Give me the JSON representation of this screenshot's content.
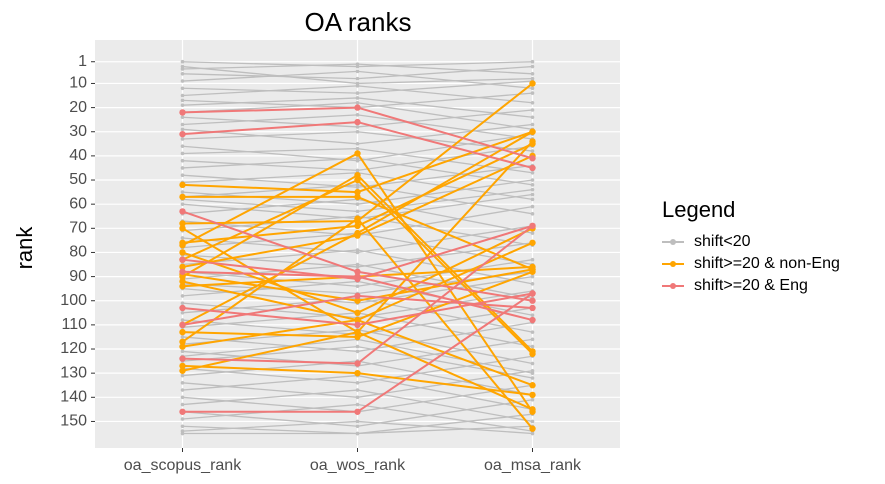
{
  "chart_data": {
    "type": "parallel-line",
    "title": "OA ranks",
    "y_label": "rank",
    "legend_title": "Legend",
    "categories": [
      "oa_scopus_rank",
      "oa_wos_rank",
      "oa_msa_rank"
    ],
    "ylim": [
      -8,
      161
    ],
    "y_reversed": true,
    "grid": true,
    "yticks": [
      1,
      10,
      20,
      30,
      40,
      50,
      60,
      70,
      80,
      90,
      100,
      110,
      120,
      130,
      140,
      150
    ],
    "series": [
      {
        "name": "shift<20",
        "color": "#bebebe",
        "lines": [
          [
            1,
            3,
            1
          ],
          [
            4,
            2,
            6
          ],
          [
            6,
            8,
            3
          ],
          [
            9,
            5,
            12
          ],
          [
            12,
            14,
            9
          ],
          [
            15,
            11,
            18
          ],
          [
            17,
            20,
            14
          ],
          [
            19,
            16,
            24
          ],
          [
            24,
            28,
            21
          ],
          [
            27,
            23,
            33
          ],
          [
            29,
            35,
            27
          ],
          [
            33,
            30,
            38
          ],
          [
            36,
            42,
            31
          ],
          [
            39,
            37,
            47
          ],
          [
            42,
            46,
            36
          ],
          [
            45,
            41,
            52
          ],
          [
            48,
            53,
            44
          ],
          [
            51,
            47,
            58
          ],
          [
            55,
            60,
            50
          ],
          [
            57,
            52,
            64
          ],
          [
            60,
            66,
            56
          ],
          [
            64,
            58,
            72
          ],
          [
            67,
            73,
            61
          ],
          [
            71,
            65,
            77
          ],
          [
            74,
            80,
            69
          ],
          [
            78,
            72,
            85
          ],
          [
            81,
            86,
            76
          ],
          [
            85,
            79,
            93
          ],
          [
            88,
            94,
            83
          ],
          [
            91,
            85,
            99
          ],
          [
            95,
            101,
            90
          ],
          [
            98,
            92,
            106
          ],
          [
            101,
            107,
            96
          ],
          [
            105,
            99,
            113
          ],
          [
            108,
            114,
            103
          ],
          [
            111,
            105,
            119
          ],
          [
            115,
            121,
            109
          ],
          [
            118,
            112,
            126
          ],
          [
            121,
            127,
            116
          ],
          [
            125,
            119,
            132
          ],
          [
            128,
            134,
            123
          ],
          [
            131,
            125,
            139
          ],
          [
            134,
            140,
            129
          ],
          [
            137,
            131,
            145
          ],
          [
            140,
            146,
            135
          ],
          [
            143,
            137,
            150
          ],
          [
            146,
            152,
            141
          ],
          [
            149,
            143,
            154
          ],
          [
            152,
            155,
            147
          ],
          [
            154,
            150,
            155
          ],
          [
            155,
            155,
            152
          ],
          [
            3,
            10,
            8
          ],
          [
            22,
            18,
            29
          ],
          [
            58,
            63,
            54
          ],
          [
            93,
            97,
            88
          ],
          [
            123,
            116,
            130
          ]
        ]
      },
      {
        "name": "shift>=20 & non-Eng",
        "color": "#ffa500",
        "lines": [
          [
            52,
            55,
            30
          ],
          [
            68,
            67,
            10
          ],
          [
            70,
            113,
            34
          ],
          [
            76,
            69,
            35
          ],
          [
            77,
            39,
            146
          ],
          [
            83,
            50,
            122
          ],
          [
            86,
            73,
            40
          ],
          [
            89,
            100,
            87
          ],
          [
            92,
            108,
            76
          ],
          [
            94,
            90,
            86
          ],
          [
            110,
            72,
            30
          ],
          [
            113,
            115,
            88
          ],
          [
            117,
            66,
            153
          ],
          [
            119,
            108,
            135
          ],
          [
            127,
            130,
            139
          ],
          [
            129,
            113,
            145
          ],
          [
            57,
            57,
            87
          ],
          [
            80,
            105,
            70
          ],
          [
            90,
            48,
            121
          ]
        ]
      },
      {
        "name": "shift>=20 & Eng",
        "color": "#f07878",
        "lines": [
          [
            22,
            20,
            41
          ],
          [
            31,
            26,
            45
          ],
          [
            63,
            88,
            100
          ],
          [
            83,
            91,
            69
          ],
          [
            103,
            110,
            97
          ],
          [
            124,
            126,
            69
          ],
          [
            146,
            146,
            97
          ],
          [
            88,
            90,
            108
          ],
          [
            110,
            98,
            103
          ]
        ]
      }
    ]
  }
}
